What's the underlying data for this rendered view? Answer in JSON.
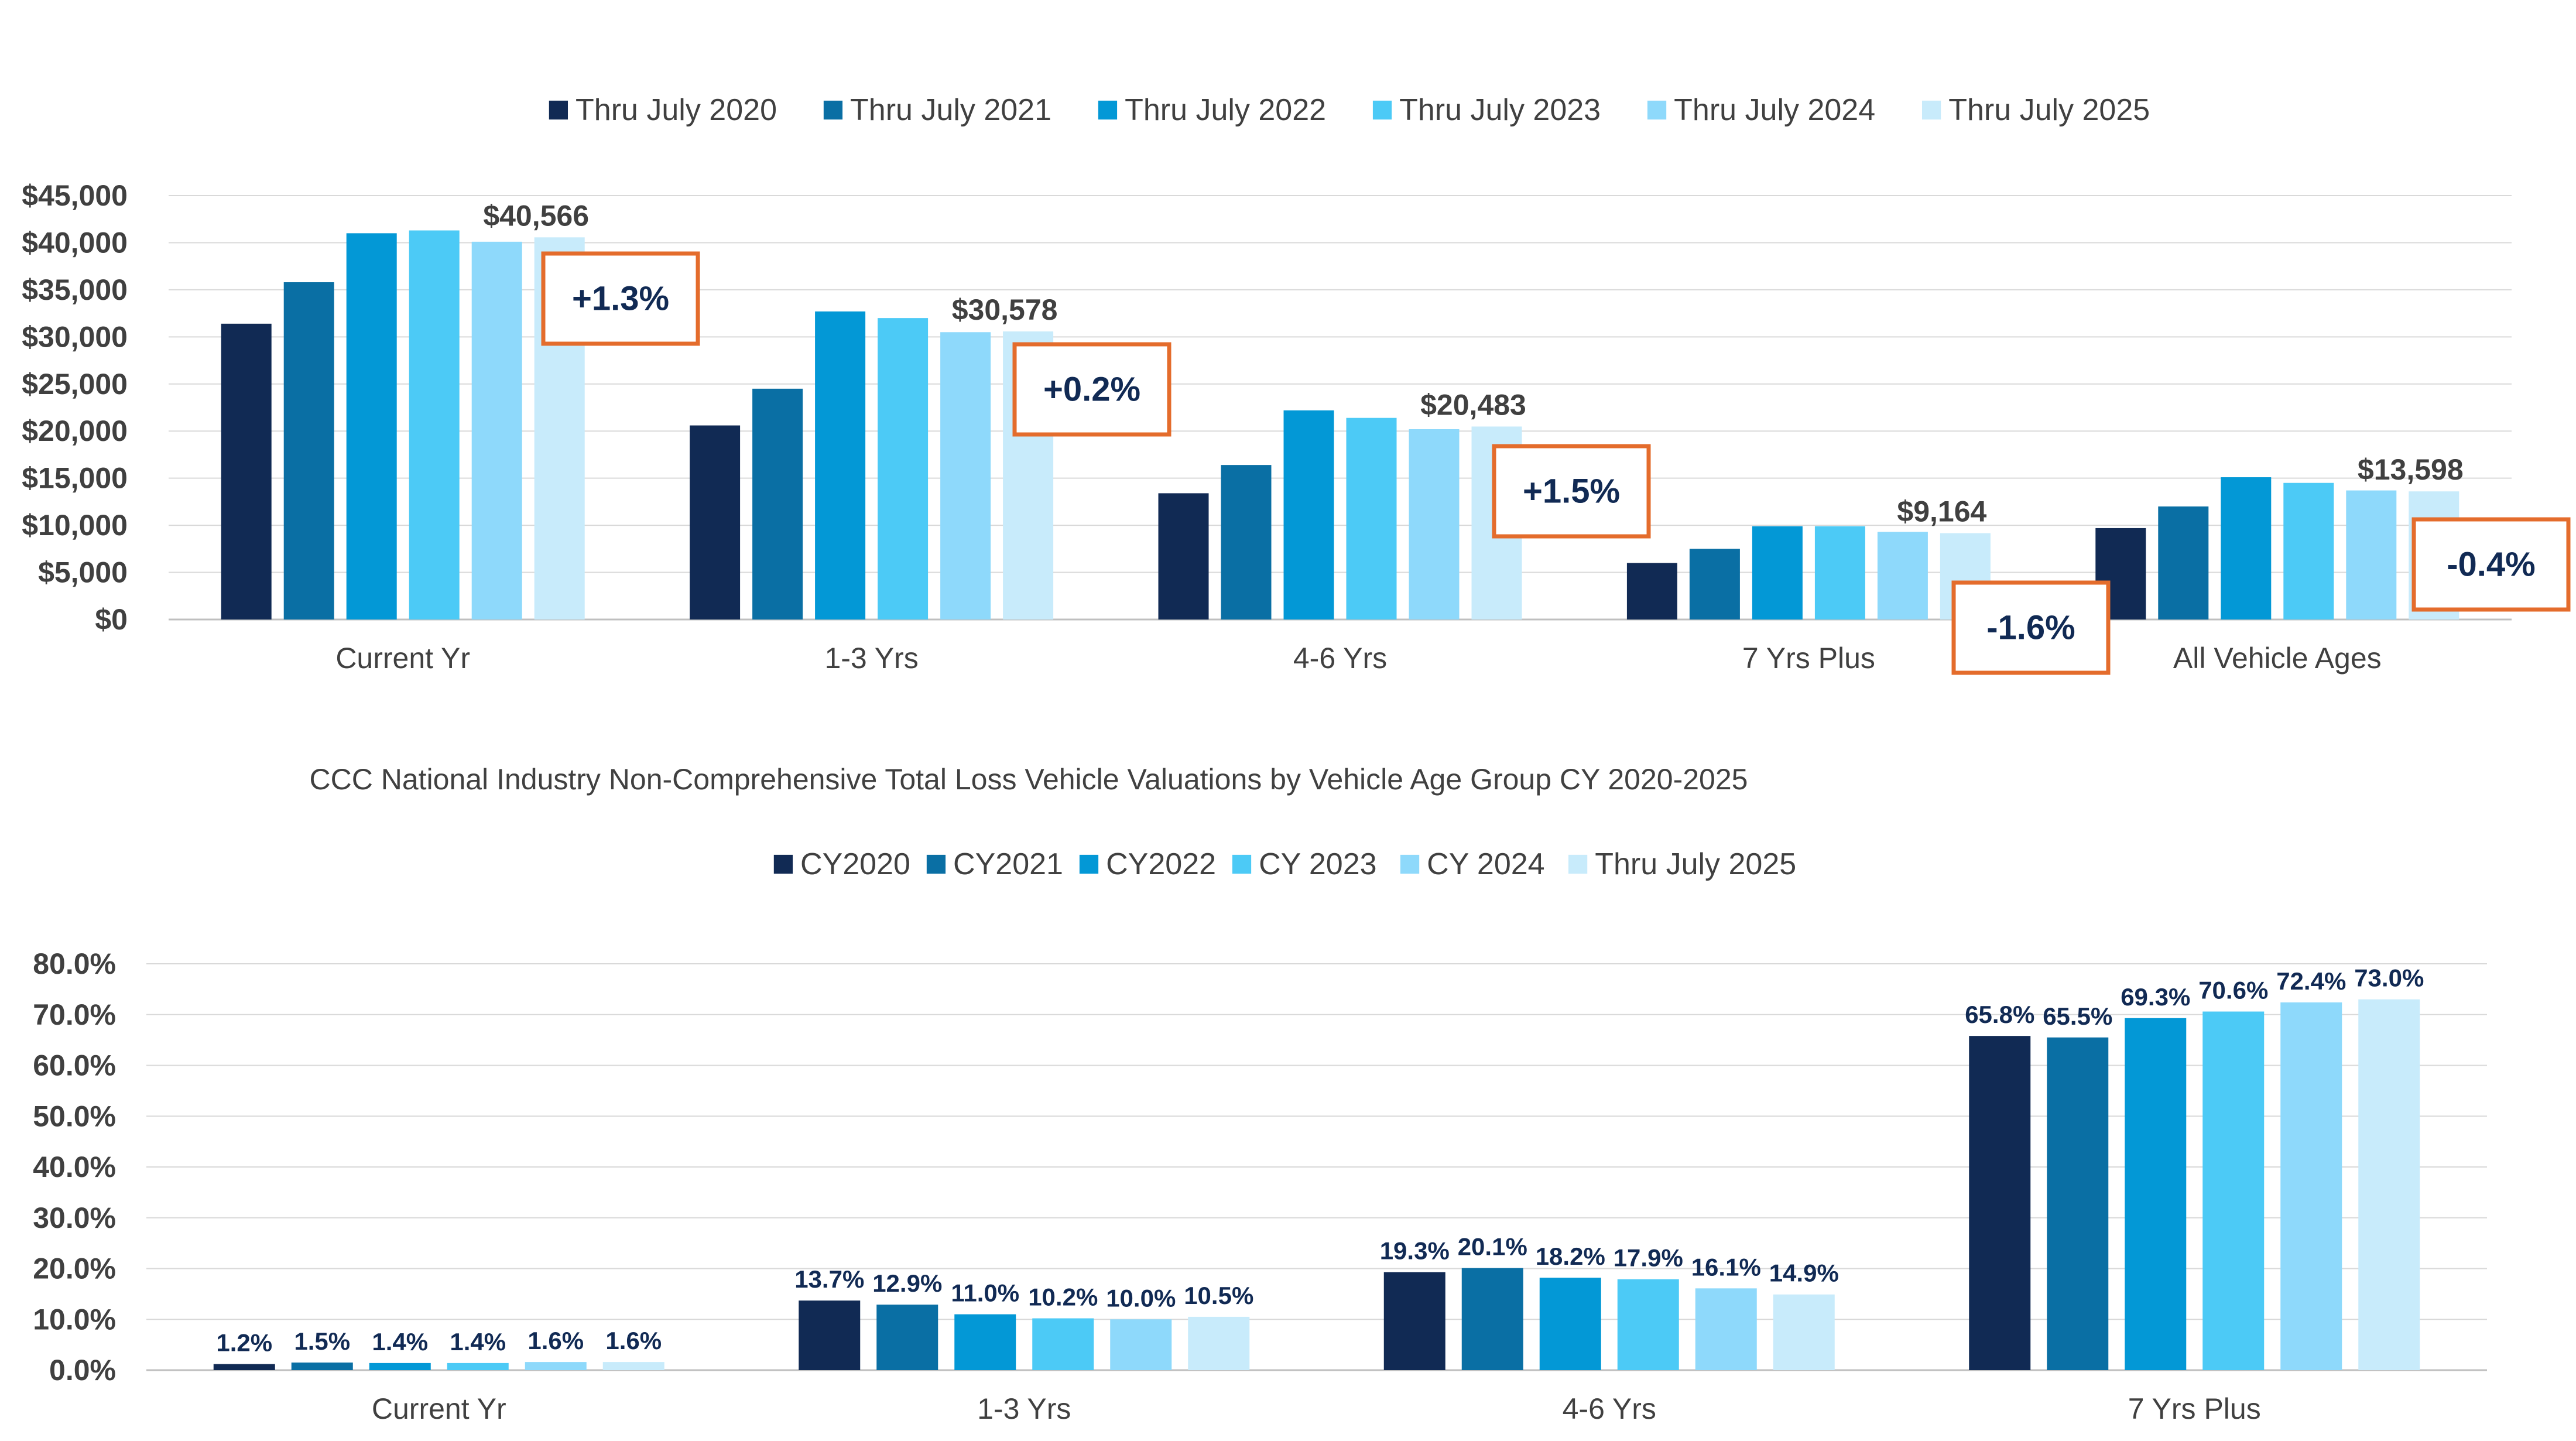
{
  "chart_data": [
    {
      "type": "bar",
      "title": "",
      "xlabel": "",
      "ylabel": "",
      "ylim": [
        0,
        45000
      ],
      "y_ticks": [
        "$0",
        "$5,000",
        "$10,000",
        "$15,000",
        "$20,000",
        "$25,000",
        "$30,000",
        "$35,000",
        "$40,000",
        "$45,000"
      ],
      "grid": true,
      "legend_position": "top",
      "categories": [
        "Current Yr",
        "1-3 Yrs",
        "4-6 Yrs",
        "7 Yrs Plus",
        "All Vehicle Ages"
      ],
      "series": [
        {
          "name": "Thru July 2020",
          "color": "#112a54",
          "values": [
            31400,
            20600,
            13400,
            6000,
            9700
          ]
        },
        {
          "name": "Thru July 2021",
          "color": "#0a6fa4",
          "values": [
            35800,
            24500,
            16400,
            7500,
            12000
          ]
        },
        {
          "name": "Thru July 2022",
          "color": "#0398d6",
          "values": [
            41000,
            32700,
            22200,
            9900,
            15100
          ]
        },
        {
          "name": "Thru July 2023",
          "color": "#4ccaf6",
          "values": [
            41300,
            32000,
            21400,
            9900,
            14500
          ]
        },
        {
          "name": "Thru July 2024",
          "color": "#8ed9fb",
          "values": [
            40100,
            30500,
            20200,
            9300,
            13700
          ]
        },
        {
          "name": "Thru July 2025",
          "color": "#c8ebfb",
          "values": [
            40566,
            30578,
            20483,
            9164,
            13598
          ]
        }
      ],
      "value_labels": [
        "$40,566",
        "$30,578",
        "$20,483",
        "$9,164",
        "$13,598"
      ],
      "change_labels": [
        "+1.3%",
        "+0.2%",
        "+1.5%",
        "-1.6%",
        "-0.4%"
      ],
      "annotation_color": "#e46c2c"
    },
    {
      "type": "bar",
      "title": "CCC National Industry Non-Comprehensive Total Loss Vehicle Valuations  by Vehicle Age Group CY 2020-2025",
      "xlabel": "",
      "ylabel": "",
      "ylim": [
        0,
        80
      ],
      "y_ticks": [
        "0.0%",
        "10.0%",
        "20.0%",
        "30.0%",
        "40.0%",
        "50.0%",
        "60.0%",
        "70.0%",
        "80.0%"
      ],
      "grid": true,
      "legend_position": "top",
      "categories": [
        "Current Yr",
        "1-3 Yrs",
        "4-6 Yrs",
        "7 Yrs Plus"
      ],
      "series": [
        {
          "name": "CY2020",
          "color": "#112a54",
          "values": [
            1.2,
            13.7,
            19.3,
            65.8
          ],
          "labels": [
            "1.2%",
            "13.7%",
            "19.3%",
            "65.8%"
          ]
        },
        {
          "name": "CY2021",
          "color": "#0a6fa4",
          "values": [
            1.5,
            12.9,
            20.1,
            65.5
          ],
          "labels": [
            "1.5%",
            "12.9%",
            "20.1%",
            "65.5%"
          ]
        },
        {
          "name": "CY2022",
          "color": "#0398d6",
          "values": [
            1.4,
            11.0,
            18.2,
            69.3
          ],
          "labels": [
            "1.4%",
            "11.0%",
            "18.2%",
            "69.3%"
          ]
        },
        {
          "name": "CY 2023",
          "color": "#4ccaf6",
          "values": [
            1.4,
            10.2,
            17.9,
            70.6
          ],
          "labels": [
            "1.4%",
            "10.2%",
            "17.9%",
            "70.6%"
          ]
        },
        {
          "name": "CY 2024",
          "color": "#8ed9fb",
          "values": [
            1.6,
            10.0,
            16.1,
            72.4
          ],
          "labels": [
            "1.6%",
            "10.0%",
            "16.1%",
            "72.4%"
          ]
        },
        {
          "name": "Thru July 2025",
          "color": "#c8ebfb",
          "values": [
            1.6,
            10.5,
            14.9,
            73.0
          ],
          "labels": [
            "1.6%",
            "10.5%",
            "14.9%",
            "73.0%"
          ]
        }
      ],
      "label_color": "#112a54"
    }
  ]
}
